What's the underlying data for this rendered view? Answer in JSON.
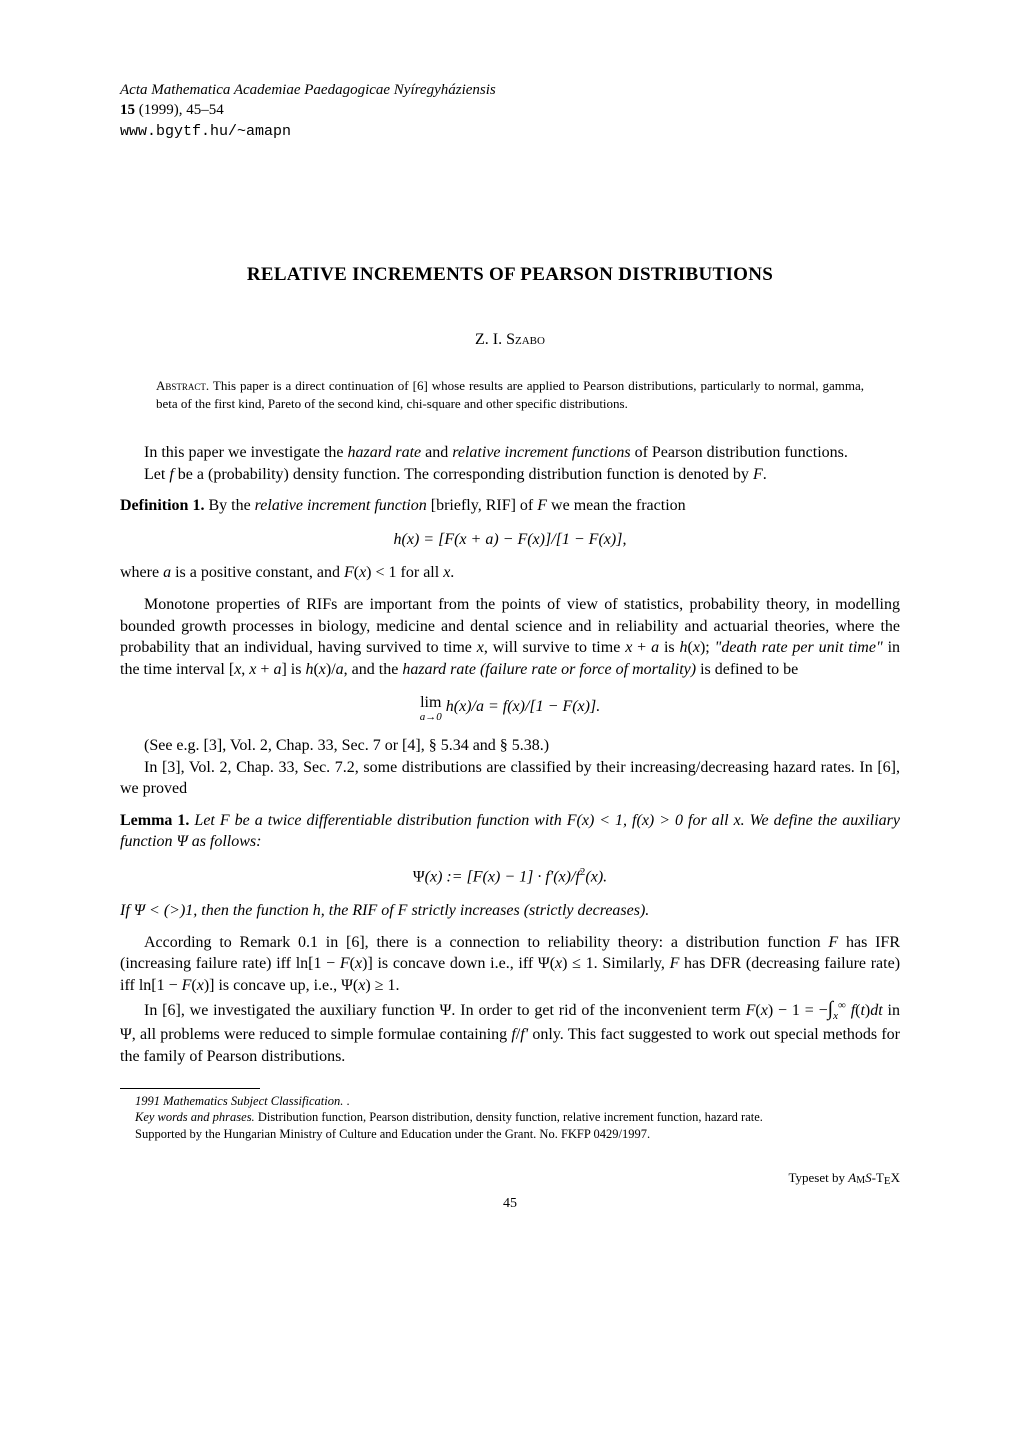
{
  "journal": {
    "name": "Acta Mathematica Academiae Paedagogicae Nyíregyháziensis",
    "volume": "15",
    "year": "(1999)",
    "pages": "45–54",
    "url": "www.bgytf.hu/~amapn"
  },
  "title": "RELATIVE INCREMENTS OF PEARSON DISTRIBUTIONS",
  "author": "Z. I. Szabo",
  "abstract": {
    "label": "Abstract.",
    "text": "This paper is a direct continuation of [6] whose results are applied to Pearson distributions, particularly to normal, gamma, beta of the first kind, Pareto of the second kind, chi-square and other specific distributions."
  },
  "body": {
    "p1": "In this paper we investigate the ",
    "p1_hr": "hazard rate",
    "p1_and": " and ",
    "p1_rif": "relative increment functions",
    "p1_end": " of Pearson distribution functions.",
    "p2a": "Let ",
    "p2b": " be a (probability) density function. The corresponding distribution function is denoted by ",
    "p2c": ".",
    "def1_label": "Definition 1.",
    "def1_a": " By the ",
    "def1_b": "relative increment function",
    "def1_c": " [briefly, RIF] of ",
    "def1_d": " we mean the fraction",
    "eq1": "h(x) = [F(x + a) − F(x)]/[1 − F(x)],",
    "def1_e": "where ",
    "def1_f": " is a positive constant, and ",
    "def1_g": " for all ",
    "def1_h": ".",
    "p3": "Monotone properties of RIFs are important from the points of view of statistics, probability theory, in modelling bounded growth processes in biology, medicine and dental science and in reliability and actuarial theories, where the probability that an individual, having survived to time ",
    "p3b": ", will survive to time ",
    "p3c": " is ",
    "p3d": "; ",
    "p3_death": "\"death rate per unit time\"",
    "p3e": " in the time interval ",
    "p3f": " is ",
    "p3g": ", and the ",
    "p3_hr": "hazard rate (failure rate or force of mortality)",
    "p3h": " is defined to be",
    "eq2_lim": "lim",
    "eq2_sub": "a→0",
    "eq2": " h(x)/a = f(x)/[1 − F(x)].",
    "p4": "(See e.g. [3], Vol. 2, Chap. 33, Sec. 7 or [4], § 5.34 and § 5.38.)",
    "p5": "In [3], Vol. 2, Chap. 33, Sec. 7.2, some distributions are classified by their increasing/decreasing hazard rates. In [6], we proved",
    "lem1_label": "Lemma 1.",
    "lem1": " Let F be a twice differentiable distribution function with F(x) < 1, f(x) > 0 for all x. We define the auxiliary function Ψ as follows:",
    "eq3": "Ψ(x) := [F(x) − 1] · f'(x)/f²(x).",
    "lem1_b": "If Ψ < (>)1, then the function h, the RIF of F strictly increases (strictly decreases).",
    "p6a": "According to Remark 0.1 in [6], there is a connection to reliability theory: a distribution function ",
    "p6b": " has IFR (increasing failure rate) iff ",
    "p6c": " is concave down i.e., iff ",
    "p6d": ". Similarly, ",
    "p6e": " has DFR (decreasing failure rate) iff ",
    "p6f": " is concave up, i.e., ",
    "p6g": ".",
    "p7a": "In [6], we investigated the auxiliary function Ψ. In order to get rid of the inconvenient term ",
    "p7b": " in Ψ, all problems were reduced to simple formulae containing ",
    "p7c": " only. This fact suggested to work out special methods for the family of Pearson distributions."
  },
  "footnotes": {
    "msc_label": "1991 Mathematics Subject Classification.",
    "msc": " .",
    "kw_label": "Key words and phrases.",
    "kw": " Distribution function, Pearson distribution, density function, relative increment function, hazard rate.",
    "support": "Supported by the Hungarian Ministry of Culture and Education under the Grant. No. FKFP 0429/1997."
  },
  "typeset": "Typeset by ",
  "typeset_ams": "AMS",
  "typeset_tex": "-TEX",
  "page_number": "45"
}
